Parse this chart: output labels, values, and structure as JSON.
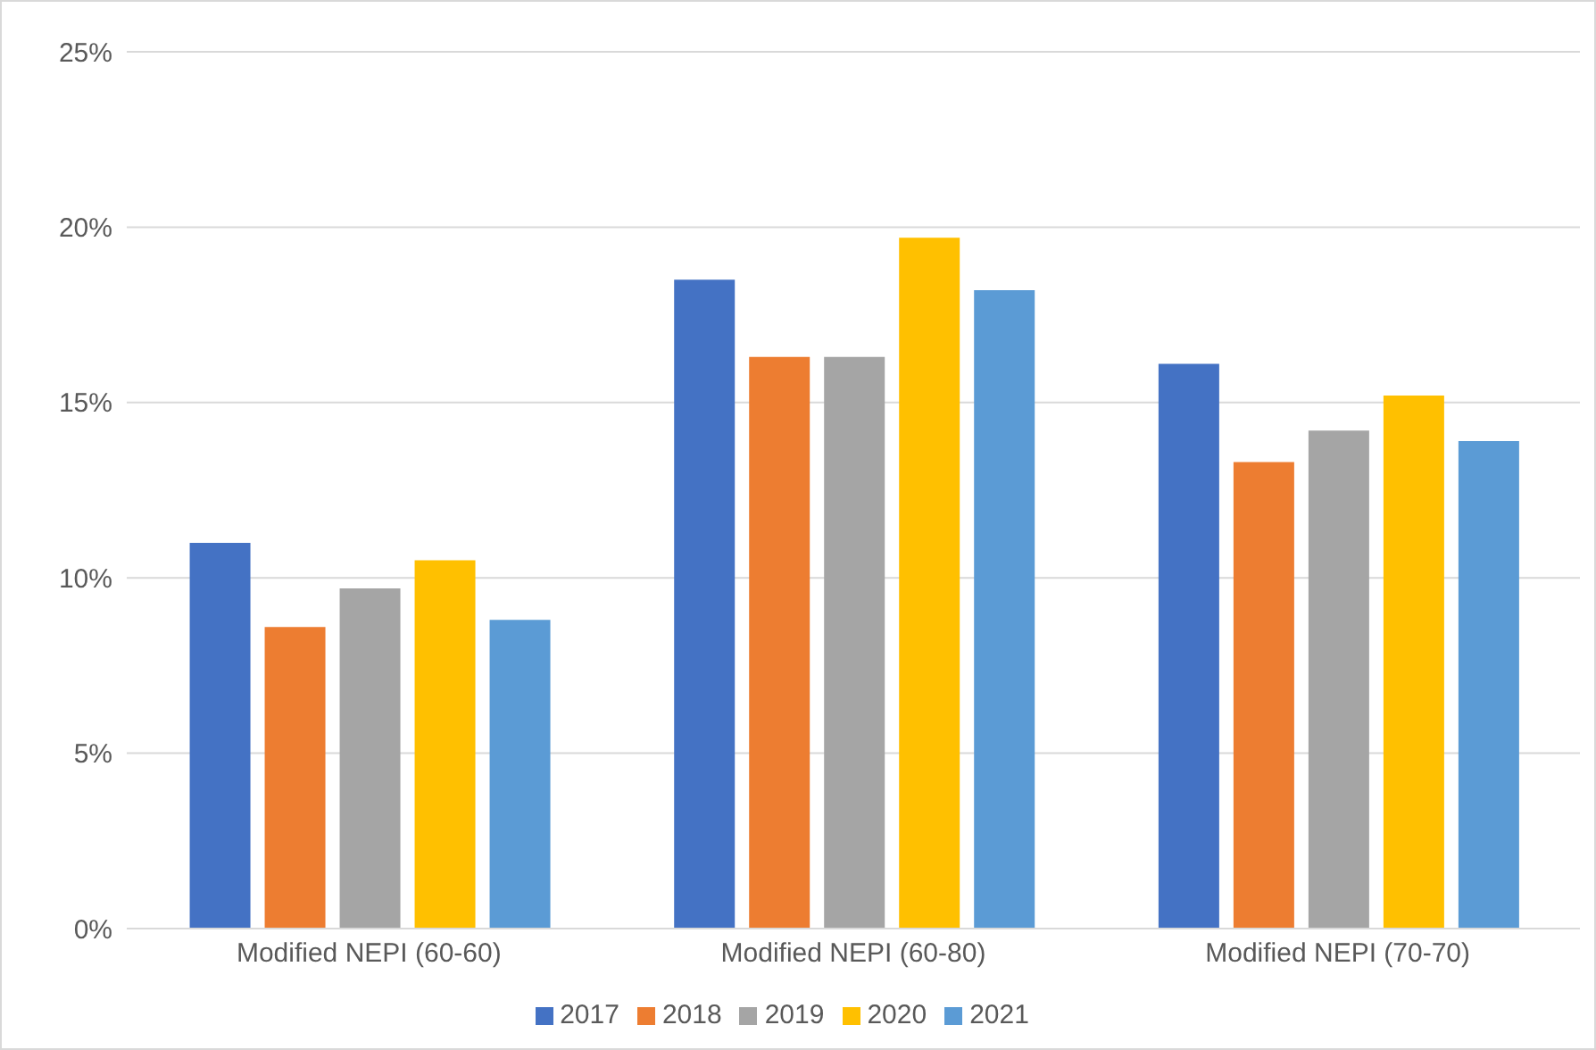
{
  "chart_data": {
    "type": "bar",
    "categories": [
      "Modified NEPI (60-60)",
      "Modified NEPI (60-80)",
      "Modified NEPI (70-70)"
    ],
    "series": [
      {
        "name": "2017",
        "color": "#4472c4",
        "values": [
          11.0,
          18.5,
          16.1
        ]
      },
      {
        "name": "2018",
        "color": "#ed7d31",
        "values": [
          8.6,
          16.3,
          13.3
        ]
      },
      {
        "name": "2019",
        "color": "#a5a5a5",
        "values": [
          9.7,
          16.3,
          14.2
        ]
      },
      {
        "name": "2020",
        "color": "#ffc000",
        "values": [
          10.5,
          19.7,
          15.2
        ]
      },
      {
        "name": "2021",
        "color": "#5b9bd5",
        "values": [
          8.8,
          18.2,
          13.9
        ]
      }
    ],
    "ylim": [
      0,
      25
    ],
    "yticks": [
      {
        "value": 0,
        "label": "0%"
      },
      {
        "value": 5,
        "label": "5%"
      },
      {
        "value": 10,
        "label": "10%"
      },
      {
        "value": 15,
        "label": "15%"
      },
      {
        "value": 20,
        "label": "20%"
      },
      {
        "value": 25,
        "label": "25%"
      }
    ],
    "grid": "y",
    "legend": "bottom"
  }
}
